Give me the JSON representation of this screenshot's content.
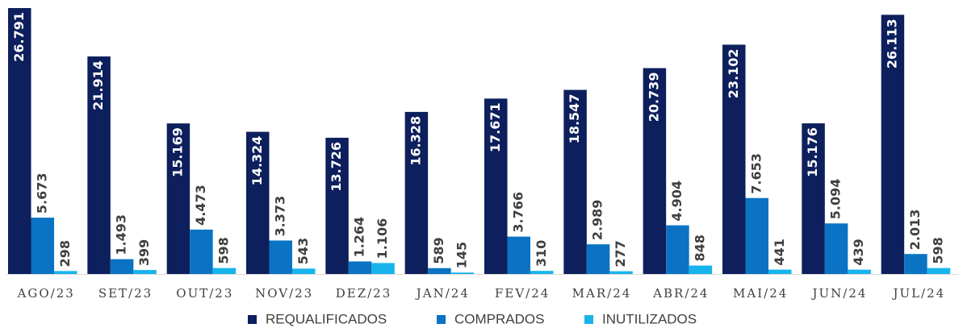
{
  "chart_data": {
    "type": "bar",
    "categories": [
      "AGO/23",
      "SET/23",
      "OUT/23",
      "NOV/23",
      "DEZ/23",
      "JAN/24",
      "FEV/24",
      "MAR/24",
      "ABR/24",
      "MAI/24",
      "JUN/24",
      "JUL/24"
    ],
    "series": [
      {
        "name": "REQUALIFICADOS",
        "color": "#0d1f5c",
        "values": [
          26791,
          21914,
          15169,
          14324,
          13726,
          16328,
          17671,
          18547,
          20739,
          23102,
          15176,
          26113
        ],
        "value_labels": [
          "26.791",
          "21.914",
          "15.169",
          "14.324",
          "13.726",
          "16.328",
          "17.671",
          "18.547",
          "20.739",
          "23.102",
          "15.176",
          "26.113"
        ]
      },
      {
        "name": "COMPRADOS",
        "color": "#0a73c4",
        "values": [
          5673,
          1493,
          4473,
          3373,
          1264,
          589,
          3766,
          2989,
          4904,
          7653,
          5094,
          2013
        ],
        "value_labels": [
          "5.673",
          "1.493",
          "4.473",
          "3.373",
          "1.264",
          "589",
          "3.766",
          "2.989",
          "4.904",
          "7.653",
          "5.094",
          "2.013"
        ]
      },
      {
        "name": "INUTILIZADOS",
        "color": "#17b4ec",
        "values": [
          298,
          399,
          598,
          543,
          1106,
          145,
          310,
          277,
          848,
          441,
          439,
          598
        ],
        "value_labels": [
          "298",
          "399",
          "598",
          "543",
          "1.106",
          "145",
          "310",
          "277",
          "848",
          "441",
          "439",
          "598"
        ]
      }
    ]
  }
}
